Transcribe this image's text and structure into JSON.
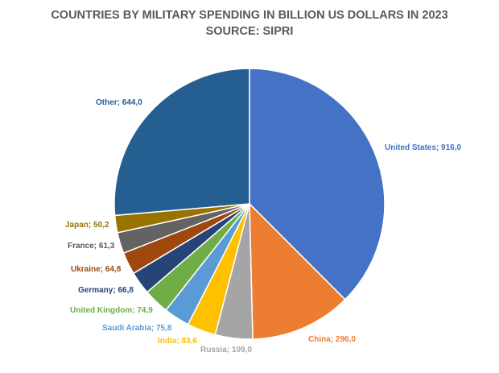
{
  "chart_data": {
    "type": "pie",
    "title": "COUNTRIES BY MILITARY SPENDING IN BILLION US DOLLARS IN 2023",
    "subtitle": "SOURCE: SIPRI",
    "slices": [
      {
        "name": "United States",
        "value": 916.0,
        "label": "United States; 916,0",
        "color": "#4472C4"
      },
      {
        "name": "China",
        "value": 296.0,
        "label": "China; 296,0",
        "color": "#ED7D31"
      },
      {
        "name": "Russia",
        "value": 109.0,
        "label": "Russia; 109,0",
        "color": "#A5A5A5"
      },
      {
        "name": "India",
        "value": 83.6,
        "label": "India; 83,6",
        "color": "#FFC000"
      },
      {
        "name": "Saudi Arabia",
        "value": 75.8,
        "label": "Saudi Arabia; 75,8",
        "color": "#5B9BD5"
      },
      {
        "name": "United Kingdom",
        "value": 74.9,
        "label": "United Kingdom; 74,9",
        "color": "#70AD47"
      },
      {
        "name": "Germany",
        "value": 66.8,
        "label": "Germany; 66,8",
        "color": "#264478"
      },
      {
        "name": "Ukraine",
        "value": 64.8,
        "label": "Ukraine; 64,8",
        "color": "#9E480E"
      },
      {
        "name": "France",
        "value": 61.3,
        "label": "France; 61,3",
        "color": "#636363"
      },
      {
        "name": "Japan",
        "value": 50.2,
        "label": "Japan; 50,2",
        "color": "#997300"
      },
      {
        "name": "Other",
        "value": 644.0,
        "label": "Other; 644,0",
        "color": "#255E91"
      }
    ]
  }
}
